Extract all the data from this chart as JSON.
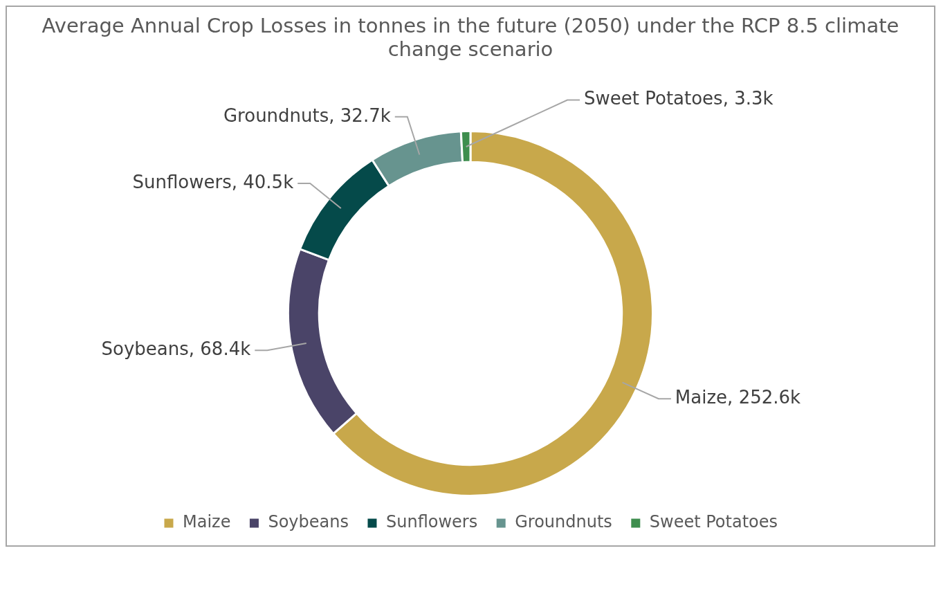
{
  "chart_data": {
    "type": "donut",
    "title": "Average Annual Crop Losses in tonnes in the future (2050) under the RCP 8.5 climate change scenario",
    "categories": [
      "Maize",
      "Soybeans",
      "Sunflowers",
      "Groundnuts",
      "Sweet Potatoes"
    ],
    "values": [
      252600,
      68400,
      40500,
      32700,
      3300
    ],
    "value_labels": [
      "Maize, 252.6k",
      "Soybeans, 68.4k",
      "Sunflowers, 40.5k",
      "Groundnuts, 32.7k",
      "Sweet Potatoes, 3.3k"
    ],
    "colors": [
      "#c8a84b",
      "#4a4468",
      "#054a4a",
      "#67948f",
      "#3e8e4e"
    ],
    "legend": "bottom"
  }
}
